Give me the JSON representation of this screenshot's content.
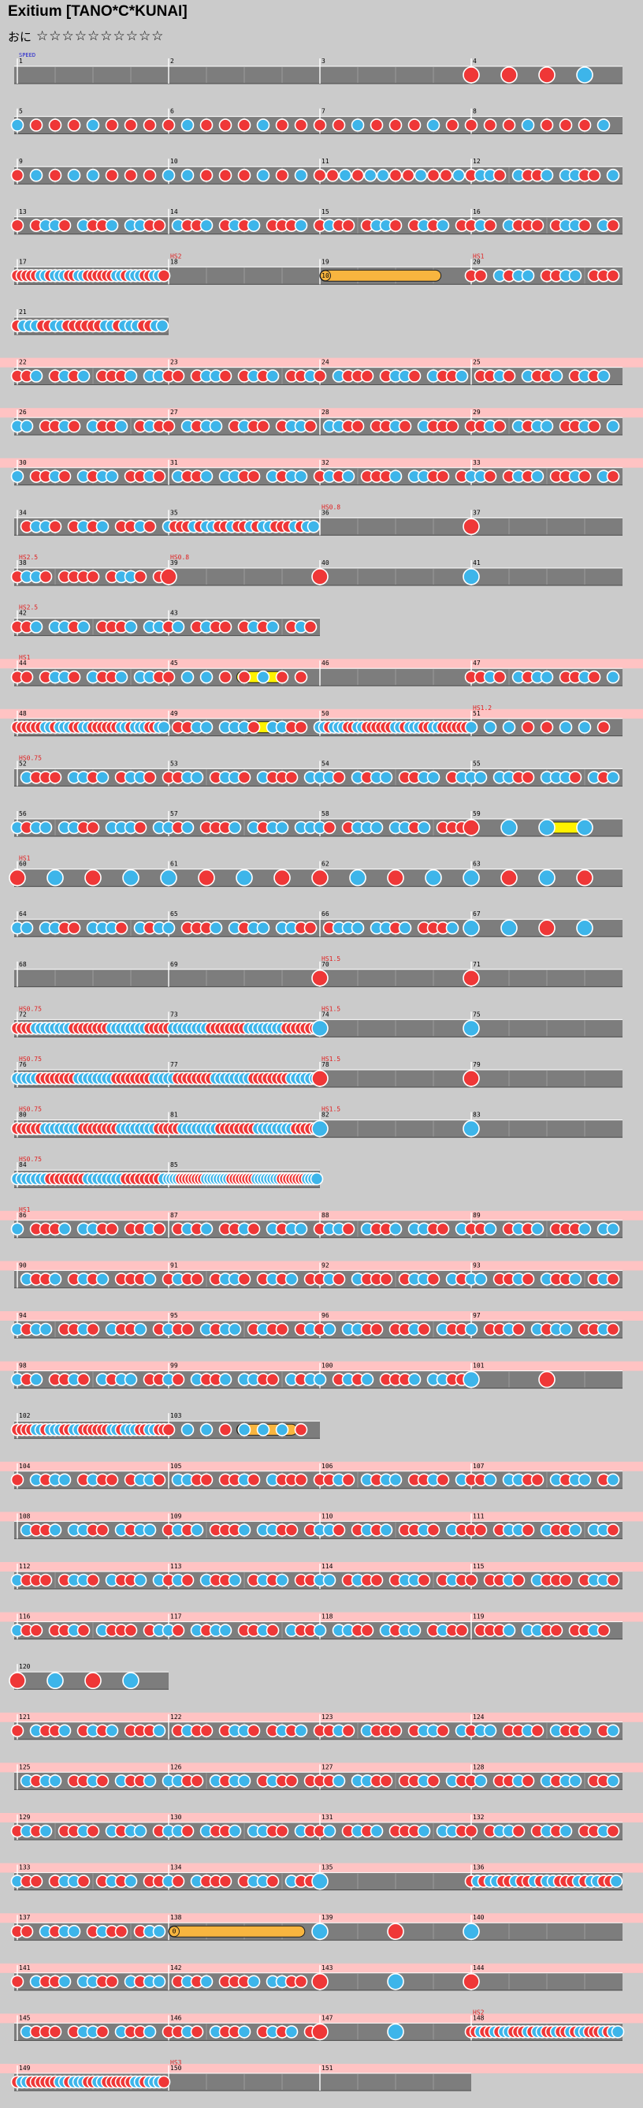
{
  "song": {
    "title": "Exitium [TANO*C*KUNAI]",
    "difficulty_label": "おに",
    "stars": "☆☆☆☆☆☆☆☆☆☆",
    "level": 10
  },
  "start_label": "SPEED",
  "colors": {
    "background": "#cbcbcb",
    "lane": "#7d7d7d",
    "gogo": "#ffc3c3",
    "don": "#ef3737",
    "ka": "#3db5ea",
    "roll": "#f8b53f",
    "balloon": "#fff200",
    "event_text": "#e02020"
  },
  "rows": [
    {
      "measures": [
        1,
        2,
        3,
        4
      ],
      "bars": 4,
      "density": [
        0,
        0,
        0,
        4
      ],
      "pattern": "a"
    },
    {
      "measures": [
        5,
        6,
        7,
        8
      ],
      "bars": 4,
      "density": [
        8,
        8,
        8,
        8
      ],
      "pattern": "a"
    },
    {
      "measures": [
        9,
        10,
        11,
        12
      ],
      "bars": 4,
      "density": [
        8,
        8,
        12,
        16
      ],
      "pattern": "b"
    },
    {
      "measures": [
        13,
        14,
        15,
        16
      ],
      "bars": 4,
      "density": [
        16,
        16,
        16,
        16
      ],
      "pattern": "b"
    },
    {
      "measures": [
        17,
        18,
        19,
        20
      ],
      "bars": 4,
      "density": [
        32,
        0,
        0,
        16
      ],
      "pattern": "c",
      "events": [
        {
          "bar": 1,
          "text": "HS2"
        },
        {
          "bar": 3,
          "text": "HS1"
        }
      ],
      "rolls": [
        {
          "bar": 2,
          "from": 0,
          "to": 0.8,
          "kind": "roll",
          "count": "10"
        }
      ]
    },
    {
      "measures": [
        21
      ],
      "bars": 1,
      "density": [
        24
      ],
      "pattern": "c",
      "short": true
    },
    {
      "measures": [
        22,
        23,
        24,
        25
      ],
      "bars": 4,
      "density": [
        16,
        16,
        16,
        16
      ],
      "pattern": "b",
      "gogo": true
    },
    {
      "measures": [
        26,
        27,
        28,
        29
      ],
      "bars": 4,
      "density": [
        16,
        16,
        16,
        16
      ],
      "pattern": "b",
      "gogo": true
    },
    {
      "measures": [
        30,
        31,
        32,
        33
      ],
      "bars": 4,
      "density": [
        16,
        16,
        16,
        16
      ],
      "pattern": "b",
      "gogo": true
    },
    {
      "measures": [
        34,
        35,
        36,
        37
      ],
      "bars": 4,
      "density": [
        16,
        24,
        0,
        1
      ],
      "pattern": "b",
      "events": [
        {
          "bar": 2,
          "text": "HS0.8"
        }
      ]
    },
    {
      "measures": [
        38,
        39,
        40,
        41
      ],
      "bars": 4,
      "density": [
        16,
        1,
        1,
        1
      ],
      "pattern": "d",
      "events": [
        {
          "bar": 0,
          "text": "HS2.5"
        },
        {
          "bar": 1,
          "text": "HS0.8"
        }
      ]
    },
    {
      "measures": [
        42,
        43
      ],
      "bars": 2,
      "density": [
        16,
        16
      ],
      "pattern": "d",
      "short": true,
      "events": [
        {
          "bar": 0,
          "text": "HS2.5"
        }
      ]
    },
    {
      "measures": [
        44,
        45,
        46,
        47
      ],
      "bars": 4,
      "density": [
        16,
        8,
        0,
        16
      ],
      "pattern": "b",
      "gogo": true,
      "events": [
        {
          "bar": 0,
          "text": "HS1"
        }
      ],
      "rolls": [
        {
          "bar": 1,
          "from": 0.45,
          "to": 0.78,
          "kind": "balloon",
          "count": ""
        }
      ]
    },
    {
      "measures": [
        48,
        49,
        50,
        51
      ],
      "bars": 4,
      "density": [
        32,
        16,
        32,
        8
      ],
      "pattern": "c",
      "gogo": true,
      "events": [
        {
          "bar": 3,
          "text": "HS1.2"
        }
      ],
      "rolls": [
        {
          "bar": 1,
          "from": 0.45,
          "to": 0.78,
          "kind": "balloon",
          "count": ""
        }
      ]
    },
    {
      "measures": [
        52,
        53,
        54,
        55
      ],
      "bars": 4,
      "density": [
        16,
        16,
        16,
        16
      ],
      "pattern": "e",
      "events": [
        {
          "bar": 0,
          "text": "HS0.75"
        }
      ]
    },
    {
      "measures": [
        56,
        57,
        58,
        59
      ],
      "bars": 4,
      "density": [
        16,
        16,
        16,
        4
      ],
      "pattern": "e",
      "rolls": [
        {
          "bar": 3,
          "from": 0.45,
          "to": 0.78,
          "kind": "balloon",
          "count": ""
        }
      ]
    },
    {
      "measures": [
        60,
        61,
        62,
        63
      ],
      "bars": 4,
      "density": [
        4,
        4,
        4,
        4
      ],
      "pattern": "f",
      "events": [
        {
          "bar": 0,
          "text": "HS1"
        }
      ]
    },
    {
      "measures": [
        64,
        65,
        66,
        67
      ],
      "bars": 4,
      "density": [
        16,
        16,
        16,
        4
      ],
      "pattern": "e"
    },
    {
      "measures": [
        68,
        69,
        70,
        71
      ],
      "bars": 4,
      "density": [
        0,
        0,
        1,
        1
      ],
      "pattern": "a",
      "events": [
        {
          "bar": 2,
          "text": "HS1.5"
        }
      ]
    },
    {
      "measures": [
        72,
        73,
        74,
        75
      ],
      "bars": 4,
      "density": [
        32,
        32,
        1,
        1
      ],
      "pattern": "g",
      "events": [
        {
          "bar": 0,
          "text": "HS0.75"
        },
        {
          "bar": 2,
          "text": "HS1.5"
        }
      ]
    },
    {
      "measures": [
        76,
        77,
        78,
        79
      ],
      "bars": 4,
      "density": [
        32,
        32,
        1,
        1
      ],
      "pattern": "g",
      "events": [
        {
          "bar": 0,
          "text": "HS0.75"
        },
        {
          "bar": 2,
          "text": "HS1.5"
        }
      ]
    },
    {
      "measures": [
        80,
        81,
        82,
        83
      ],
      "bars": 4,
      "density": [
        32,
        32,
        1,
        1
      ],
      "pattern": "g",
      "events": [
        {
          "bar": 0,
          "text": "HS0.75"
        },
        {
          "bar": 2,
          "text": "HS1.5"
        }
      ]
    },
    {
      "measures": [
        84,
        85
      ],
      "bars": 2,
      "density": [
        32,
        48
      ],
      "pattern": "g",
      "short": true,
      "events": [
        {
          "bar": 0,
          "text": "HS0.75"
        }
      ]
    },
    {
      "measures": [
        86,
        87,
        88,
        89
      ],
      "bars": 4,
      "density": [
        16,
        16,
        16,
        16
      ],
      "pattern": "b",
      "gogo": true,
      "events": [
        {
          "bar": 0,
          "text": "HS1"
        }
      ]
    },
    {
      "measures": [
        90,
        91,
        92,
        93
      ],
      "bars": 4,
      "density": [
        16,
        16,
        16,
        16
      ],
      "pattern": "b",
      "gogo": true
    },
    {
      "measures": [
        94,
        95,
        96,
        97
      ],
      "bars": 4,
      "density": [
        16,
        16,
        16,
        16
      ],
      "pattern": "b",
      "gogo": true
    },
    {
      "measures": [
        98,
        99,
        100,
        101
      ],
      "bars": 4,
      "density": [
        16,
        16,
        16,
        2
      ],
      "pattern": "b",
      "gogo": true
    },
    {
      "measures": [
        102,
        103
      ],
      "bars": 2,
      "density": [
        32,
        8
      ],
      "pattern": "c",
      "short": true,
      "rolls": [
        {
          "bar": 1,
          "from": 0.45,
          "to": 0.85,
          "kind": "roll",
          "count": "8"
        }
      ]
    },
    {
      "measures": [
        104,
        105,
        106,
        107
      ],
      "bars": 4,
      "density": [
        16,
        16,
        16,
        16
      ],
      "pattern": "b",
      "gogo": true
    },
    {
      "measures": [
        108,
        109,
        110,
        111
      ],
      "bars": 4,
      "density": [
        16,
        16,
        16,
        16
      ],
      "pattern": "b",
      "gogo": true
    },
    {
      "measures": [
        112,
        113,
        114,
        115
      ],
      "bars": 4,
      "density": [
        16,
        16,
        16,
        16
      ],
      "pattern": "b",
      "gogo": true
    },
    {
      "measures": [
        116,
        117,
        118,
        119
      ],
      "bars": 4,
      "density": [
        16,
        16,
        16,
        16
      ],
      "pattern": "b",
      "gogo": true
    },
    {
      "measures": [
        120
      ],
      "bars": 1,
      "density": [
        4
      ],
      "pattern": "f",
      "short": true
    },
    {
      "measures": [
        121,
        122,
        123,
        124
      ],
      "bars": 4,
      "density": [
        16,
        16,
        16,
        16
      ],
      "pattern": "b",
      "gogo": true
    },
    {
      "measures": [
        125,
        126,
        127,
        128
      ],
      "bars": 4,
      "density": [
        16,
        16,
        16,
        16
      ],
      "pattern": "b",
      "gogo": true
    },
    {
      "measures": [
        129,
        130,
        131,
        132
      ],
      "bars": 4,
      "density": [
        16,
        16,
        16,
        16
      ],
      "pattern": "b",
      "gogo": true
    },
    {
      "measures": [
        133,
        134,
        135,
        136
      ],
      "bars": 4,
      "density": [
        16,
        16,
        1,
        24
      ],
      "pattern": "b",
      "gogo": true
    },
    {
      "measures": [
        137,
        138,
        139,
        140
      ],
      "bars": 4,
      "density": [
        16,
        0,
        2,
        1
      ],
      "pattern": "b",
      "gogo": true,
      "rolls": [
        {
          "bar": 1,
          "from": 0,
          "to": 0.9,
          "kind": "roll",
          "count": "0"
        }
      ]
    },
    {
      "measures": [
        141,
        142,
        143,
        144
      ],
      "bars": 4,
      "density": [
        16,
        16,
        2,
        1
      ],
      "pattern": "b",
      "gogo": true
    },
    {
      "measures": [
        145,
        146,
        147,
        148
      ],
      "bars": 4,
      "density": [
        16,
        16,
        2,
        32
      ],
      "pattern": "b",
      "gogo": true,
      "events": [
        {
          "bar": 3,
          "text": "HS2"
        }
      ]
    },
    {
      "measures": [
        149,
        150,
        151
      ],
      "bars": 3,
      "density": [
        32,
        0,
        0
      ],
      "pattern": "c",
      "gogo": true,
      "events": [
        {
          "bar": 1,
          "text": "HS3"
        }
      ]
    }
  ]
}
